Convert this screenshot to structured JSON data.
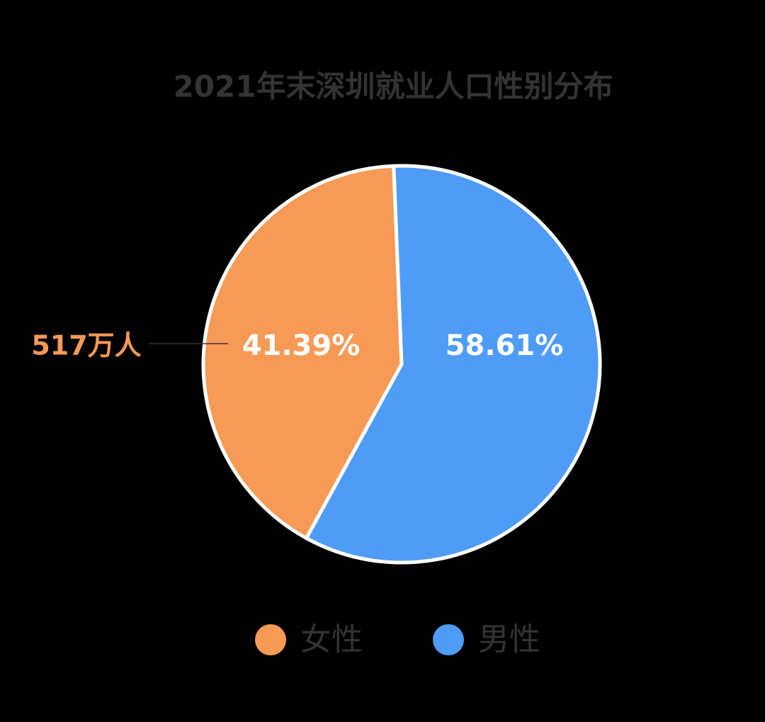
{
  "chart_data": {
    "type": "pie",
    "title": "2021年末深圳就业人口性别分布",
    "categories": [
      "女性",
      "男性"
    ],
    "values": [
      41.39,
      58.61
    ],
    "value_labels": [
      "41.39%",
      "58.61%"
    ],
    "colors": [
      "#f79a56",
      "#4f9cf6"
    ],
    "annotation": "517万人"
  }
}
